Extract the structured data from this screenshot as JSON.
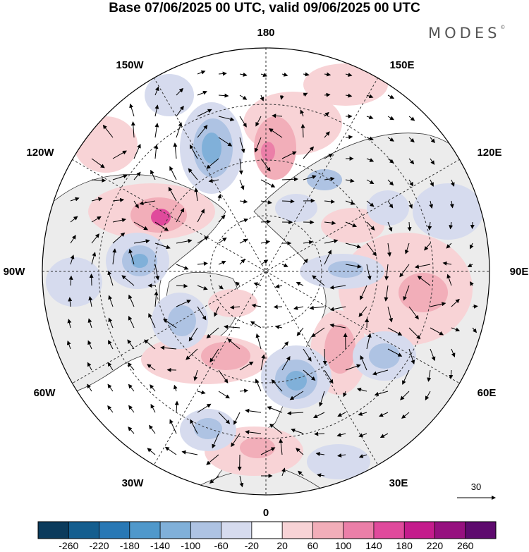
{
  "title": "Base 07/06/2025 00 UTC, valid 09/06/2025 00 UTC",
  "brand": "MODES",
  "brand_mark": "©",
  "map": {
    "projection": "north-polar-stereographic",
    "longitude_labels": [
      "180",
      "150E",
      "120E",
      "90E",
      "60E",
      "30E",
      "0",
      "30W",
      "60W",
      "90W",
      "120W",
      "150W"
    ],
    "land_color": "#ececec",
    "ocean_color": "#ffffff",
    "arrows": "wind vectors"
  },
  "reference_vector": {
    "label": "30"
  },
  "colorbar": {
    "ticks": [
      "-260",
      "-220",
      "-180",
      "-140",
      "-100",
      "-60",
      "-20",
      "20",
      "60",
      "100",
      "140",
      "180",
      "220",
      "260"
    ],
    "colors": [
      "#0b3b5c",
      "#145e8f",
      "#2878b5",
      "#4f98cb",
      "#80b0d9",
      "#aec3e3",
      "#d6dbee",
      "#ffffff",
      "#f8d3d6",
      "#f2aeb9",
      "#eb7fa8",
      "#e04a9c",
      "#c41c8c",
      "#96107f",
      "#5e0a6e"
    ]
  }
}
